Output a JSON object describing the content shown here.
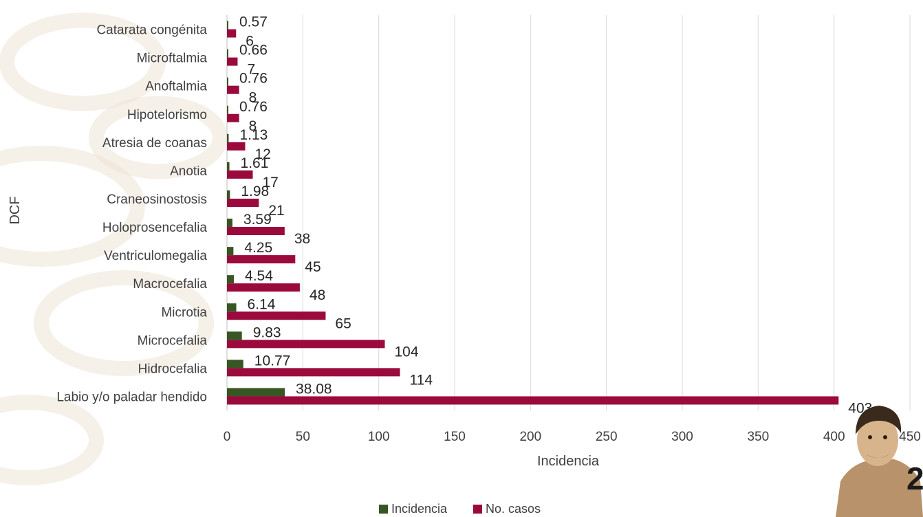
{
  "chart_data": {
    "type": "bar",
    "orientation": "horizontal",
    "categories": [
      "Labio y/o paladar hendido",
      "Hidrocefalia",
      "Microcefalia",
      "Microtia",
      "Macrocefalia",
      "Ventriculomegalia",
      "Holoprosencefalia",
      "Craneosinostosis",
      "Anotia",
      "Atresia de coanas",
      "Hipotelorismo",
      "Anoftalmia",
      "Microftalmia",
      "Catarata congénita"
    ],
    "series": [
      {
        "name": "Incidencia",
        "color": "#375623",
        "values": [
          38.08,
          10.77,
          9.83,
          6.14,
          4.54,
          4.25,
          3.59,
          1.98,
          1.61,
          1.13,
          0.76,
          0.76,
          0.66,
          0.57
        ],
        "labels": [
          "38.08",
          "10.77",
          "9.83",
          "6.14",
          "4.54",
          "4.25",
          "3.59",
          "1.98",
          "1.61",
          "1.13",
          "0.76",
          "0.76",
          "0.66",
          "0.57"
        ]
      },
      {
        "name": "No. casos",
        "color": "#9b0a3c",
        "values": [
          403,
          114,
          104,
          65,
          48,
          45,
          38,
          21,
          17,
          12,
          8,
          8,
          7,
          6
        ],
        "labels": [
          "403",
          "114",
          "104",
          "65",
          "48",
          "45",
          "38",
          "21",
          "17",
          "12",
          "8",
          "8",
          "7",
          "6"
        ]
      }
    ],
    "xlabel": "Incidencia",
    "ylabel": "DCF",
    "xlim": [
      0,
      450
    ],
    "xticks": [
      "0",
      "50",
      "100",
      "150",
      "200",
      "250",
      "300",
      "350",
      "400",
      "450"
    ],
    "grid": "vertical",
    "legend_position": "bottom"
  },
  "decor": {
    "logo_text": "2",
    "watermark_color": "#ede3d6"
  }
}
